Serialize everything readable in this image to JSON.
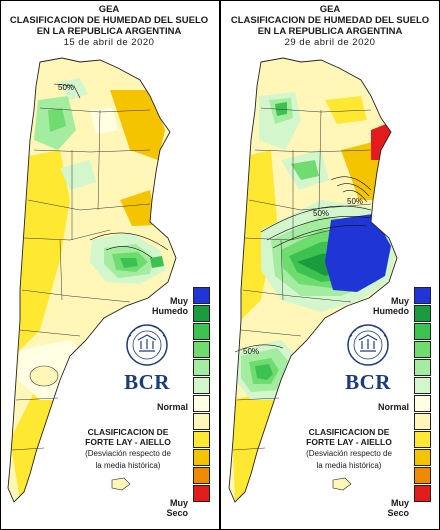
{
  "panels": [
    {
      "org": "GEA",
      "title_line1": "CLASIFICACION DE HUMEDAD DEL SUELO",
      "title_line2": "EN LA REPUBLICA ARGENTINA",
      "date": "15 de abril de 2020",
      "contour_labels": [
        "50%"
      ]
    },
    {
      "org": "GEA",
      "title_line1": "CLASIFICACION DE HUMEDAD DEL SUELO",
      "title_line2": "EN LA REPUBLICA ARGENTINA",
      "date": "29 de abril de 2020",
      "contour_labels": [
        "50%",
        "50%",
        "50%"
      ]
    }
  ],
  "legend": {
    "top_line1": "Muy",
    "top_line2": "Humedo",
    "middle": "Normal",
    "bottom_line1": "Muy",
    "bottom_line2": "Seco",
    "colors": [
      "#1f35d6",
      "#1a9c3c",
      "#3dc252",
      "#6fdc6f",
      "#a4eca0",
      "#d3f6cd",
      "#ffffe4",
      "#fff6b8",
      "#ffe832",
      "#f5c400",
      "#f08a00",
      "#e21c1c"
    ]
  },
  "logo": {
    "name": "BCR",
    "seal_text": "BOLSA DE COMERCIO DE ROSARIO"
  },
  "source": {
    "line1": "CLASIFICACION DE",
    "line2": "FORTE LAY - AIELLO",
    "note1": "(Desviación respecto de",
    "note2": "la media histórica)"
  }
}
